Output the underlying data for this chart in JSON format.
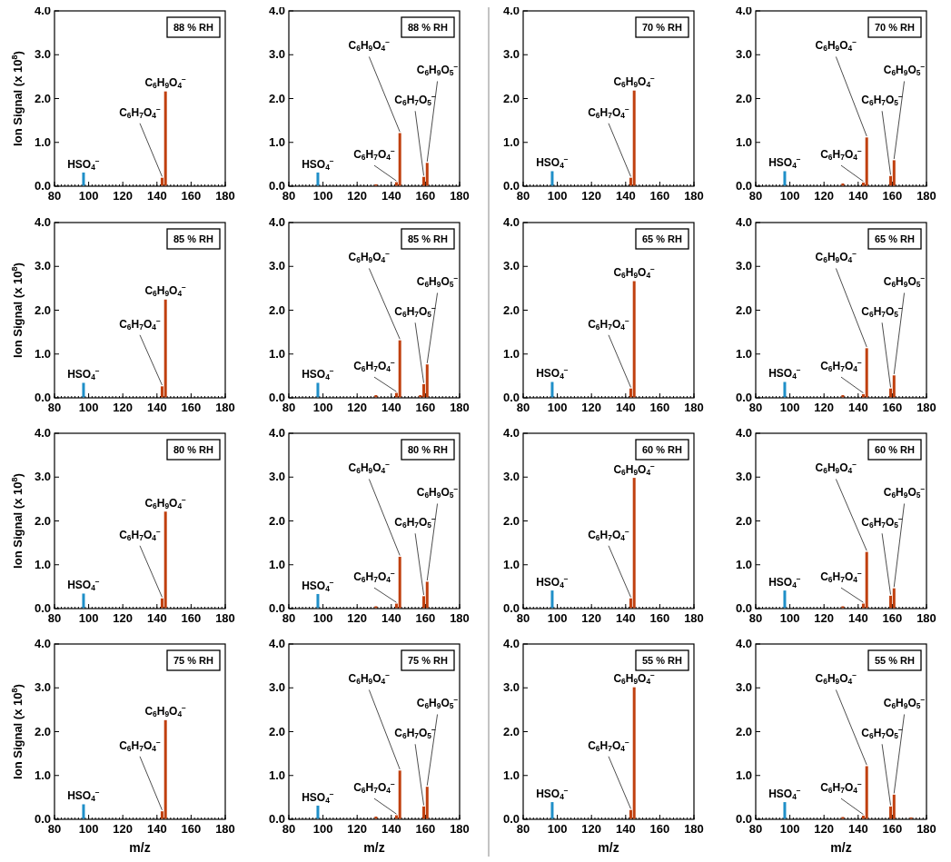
{
  "chart_data": [
    {
      "type": "bar",
      "title": "88 % RH",
      "ylabel": "Ion Signal (x 10$^{8}$)",
      "xlim": [
        80,
        180
      ],
      "xticks": [
        80,
        100,
        120,
        140,
        160,
        180
      ],
      "ylim": [
        0,
        4
      ],
      "yticks": [
        {
          "value": 0,
          "label": "0.0"
        },
        {
          "value": 1,
          "label": "1.0"
        },
        {
          "value": 2,
          "label": "2.0"
        },
        {
          "value": 3,
          "label": "3.0"
        },
        {
          "value": 4,
          "label": "4.0"
        }
      ],
      "series": [
        {
          "color": "#1f8fc8",
          "x": [
            97
          ],
          "values": [
            0.3
          ]
        },
        {
          "color": "#c0400f",
          "x": [
            143,
            145
          ],
          "values": [
            0.18,
            2.15
          ]
        }
      ],
      "annotations": [
        {
          "text": "HSO$_{4}$$^{−}$",
          "x": 97,
          "y": 0.3
        },
        {
          "text": "C$_{6}$H$_{7}$O$_{4}$$^{−}$",
          "x": 143,
          "y": 0.18
        },
        {
          "text": "C$_{6}$H$_{9}$O$_{4}$$^{−}$",
          "x": 145,
          "y": 2.15
        }
      ]
    },
    {
      "type": "bar",
      "title": "88 % RH",
      "xlim": [
        80,
        180
      ],
      "xticks": [
        80,
        100,
        120,
        140,
        160,
        180
      ],
      "ylim": [
        0,
        4
      ],
      "yticks": [
        {
          "value": 0,
          "label": "0.0"
        },
        {
          "value": 1,
          "label": "1.0"
        },
        {
          "value": 2,
          "label": "2.0"
        },
        {
          "value": 3,
          "label": "3.0"
        },
        {
          "value": 4,
          "label": "4.0"
        }
      ],
      "series": [
        {
          "color": "#1f8fc8",
          "x": [
            97
          ],
          "values": [
            0.3
          ]
        },
        {
          "color": "#c0400f",
          "x": [
            131,
            143,
            145,
            159,
            161
          ],
          "values": [
            0.03,
            0.08,
            1.2,
            0.2,
            0.52
          ]
        }
      ],
      "annotations": [
        {
          "text": "HSO$_{4}$$^{−}$",
          "x": 97,
          "y": 0.3
        },
        {
          "text": "C$_{6}$H$_{7}$O$_{4}$$^{−}$",
          "x": 143,
          "y": 0.08
        },
        {
          "text": "C$_{6}$H$_{9}$O$_{4}$$^{−}$",
          "x": 145,
          "y": 1.2
        },
        {
          "text": "C$_{6}$H$_{7}$O$_{5}$$^{−}$",
          "x": 159,
          "y": 0.2
        },
        {
          "text": "C$_{6}$H$_{9}$O$_{5}$$^{−}$",
          "x": 161,
          "y": 0.52
        }
      ]
    },
    {
      "type": "bar",
      "title": "70 % RH",
      "xlim": [
        80,
        180
      ],
      "xticks": [
        80,
        100,
        120,
        140,
        160,
        180
      ],
      "ylim": [
        0,
        4
      ],
      "yticks": [
        {
          "value": 0,
          "label": "0.0"
        },
        {
          "value": 1,
          "label": "1.0"
        },
        {
          "value": 2,
          "label": "2.0"
        },
        {
          "value": 3,
          "label": "3.0"
        },
        {
          "value": 4,
          "label": "4.0"
        }
      ],
      "series": [
        {
          "color": "#1f8fc8",
          "x": [
            97
          ],
          "values": [
            0.33
          ]
        },
        {
          "color": "#c0400f",
          "x": [
            143,
            145
          ],
          "values": [
            0.18,
            2.17
          ]
        }
      ],
      "annotations": [
        {
          "text": "HSO$_{4}$$^{−}$",
          "x": 97,
          "y": 0.33
        },
        {
          "text": "C$_{6}$H$_{7}$O$_{4}$$^{−}$",
          "x": 143,
          "y": 0.18
        },
        {
          "text": "C$_{6}$H$_{9}$O$_{4}$$^{−}$",
          "x": 145,
          "y": 2.17
        }
      ]
    },
    {
      "type": "bar",
      "title": "70 % RH",
      "xlim": [
        80,
        180
      ],
      "xticks": [
        80,
        100,
        120,
        140,
        160,
        180
      ],
      "ylim": [
        0,
        4
      ],
      "yticks": [
        {
          "value": 0,
          "label": "0.0"
        },
        {
          "value": 1,
          "label": "1.0"
        },
        {
          "value": 2,
          "label": "2.0"
        },
        {
          "value": 3,
          "label": "3.0"
        },
        {
          "value": 4,
          "label": "4.0"
        }
      ],
      "series": [
        {
          "color": "#1f8fc8",
          "x": [
            97
          ],
          "values": [
            0.33
          ]
        },
        {
          "color": "#c0400f",
          "x": [
            131,
            143,
            145,
            159,
            161
          ],
          "values": [
            0.05,
            0.07,
            1.1,
            0.22,
            0.58
          ]
        }
      ],
      "annotations": [
        {
          "text": "HSO$_{4}$$^{−}$",
          "x": 97,
          "y": 0.33
        },
        {
          "text": "C$_{6}$H$_{7}$O$_{4}$$^{−}$",
          "x": 143,
          "y": 0.07
        },
        {
          "text": "C$_{6}$H$_{9}$O$_{4}$$^{−}$",
          "x": 145,
          "y": 1.1
        },
        {
          "text": "C$_{6}$H$_{7}$O$_{5}$$^{−}$",
          "x": 159,
          "y": 0.22
        },
        {
          "text": "C$_{6}$H$_{9}$O$_{5}$$^{−}$",
          "x": 161,
          "y": 0.58
        }
      ]
    },
    {
      "type": "bar",
      "title": "85 % RH",
      "ylabel": "Ion Signal (x 10$^{8}$)",
      "xlim": [
        80,
        180
      ],
      "xticks": [
        80,
        100,
        120,
        140,
        160,
        180
      ],
      "ylim": [
        0,
        4
      ],
      "yticks": [
        {
          "value": 0,
          "label": "0.0"
        },
        {
          "value": 1,
          "label": "1.0"
        },
        {
          "value": 2,
          "label": "2.0"
        },
        {
          "value": 3,
          "label": "3.0"
        },
        {
          "value": 4,
          "label": "4.0"
        }
      ],
      "series": [
        {
          "color": "#1f8fc8",
          "x": [
            97
          ],
          "values": [
            0.33
          ]
        },
        {
          "color": "#c0400f",
          "x": [
            143,
            145
          ],
          "values": [
            0.25,
            2.23
          ]
        }
      ],
      "annotations": [
        {
          "text": "HSO$_{4}$$^{−}$",
          "x": 97,
          "y": 0.33
        },
        {
          "text": "C$_{6}$H$_{7}$O$_{4}$$^{−}$",
          "x": 143,
          "y": 0.25
        },
        {
          "text": "C$_{6}$H$_{9}$O$_{4}$$^{−}$",
          "x": 145,
          "y": 2.23
        }
      ]
    },
    {
      "type": "bar",
      "title": "85 % RH",
      "xlim": [
        80,
        180
      ],
      "xticks": [
        80,
        100,
        120,
        140,
        160,
        180
      ],
      "ylim": [
        0,
        4
      ],
      "yticks": [
        {
          "value": 0,
          "label": "0.0"
        },
        {
          "value": 1,
          "label": "1.0"
        },
        {
          "value": 2,
          "label": "2.0"
        },
        {
          "value": 3,
          "label": "3.0"
        },
        {
          "value": 4,
          "label": "4.0"
        }
      ],
      "series": [
        {
          "color": "#1f8fc8",
          "x": [
            97
          ],
          "values": [
            0.33
          ]
        },
        {
          "color": "#c0400f",
          "x": [
            131,
            143,
            145,
            157,
            159,
            161
          ],
          "values": [
            0.05,
            0.1,
            1.3,
            0.05,
            0.3,
            0.75
          ]
        }
      ],
      "annotations": [
        {
          "text": "HSO$_{4}$$^{−}$",
          "x": 97,
          "y": 0.33
        },
        {
          "text": "C$_{6}$H$_{7}$O$_{4}$$^{−}$",
          "x": 143,
          "y": 0.1
        },
        {
          "text": "C$_{6}$H$_{9}$O$_{4}$$^{−}$",
          "x": 145,
          "y": 1.3
        },
        {
          "text": "C$_{6}$H$_{7}$O$_{5}$$^{−}$",
          "x": 159,
          "y": 0.3
        },
        {
          "text": "C$_{6}$H$_{9}$O$_{5}$$^{−}$",
          "x": 161,
          "y": 0.75
        }
      ]
    },
    {
      "type": "bar",
      "title": "65 % RH",
      "xlim": [
        80,
        180
      ],
      "xticks": [
        80,
        100,
        120,
        140,
        160,
        180
      ],
      "ylim": [
        0,
        4
      ],
      "yticks": [
        {
          "value": 0,
          "label": "0.0"
        },
        {
          "value": 1,
          "label": "1.0"
        },
        {
          "value": 2,
          "label": "2.0"
        },
        {
          "value": 3,
          "label": "3.0"
        },
        {
          "value": 4,
          "label": "4.0"
        }
      ],
      "series": [
        {
          "color": "#1f8fc8",
          "x": [
            97
          ],
          "values": [
            0.35
          ]
        },
        {
          "color": "#c0400f",
          "x": [
            143,
            145
          ],
          "values": [
            0.2,
            2.65
          ]
        }
      ],
      "annotations": [
        {
          "text": "HSO$_{4}$$^{−}$",
          "x": 97,
          "y": 0.35
        },
        {
          "text": "C$_{6}$H$_{7}$O$_{4}$$^{−}$",
          "x": 143,
          "y": 0.2
        },
        {
          "text": "C$_{6}$H$_{9}$O$_{4}$$^{−}$",
          "x": 145,
          "y": 2.65
        }
      ]
    },
    {
      "type": "bar",
      "title": "65 % RH",
      "xlim": [
        80,
        180
      ],
      "xticks": [
        80,
        100,
        120,
        140,
        160,
        180
      ],
      "ylim": [
        0,
        4
      ],
      "yticks": [
        {
          "value": 0,
          "label": "0.0"
        },
        {
          "value": 1,
          "label": "1.0"
        },
        {
          "value": 2,
          "label": "2.0"
        },
        {
          "value": 3,
          "label": "3.0"
        },
        {
          "value": 4,
          "label": "4.0"
        }
      ],
      "series": [
        {
          "color": "#1f8fc8",
          "x": [
            97
          ],
          "values": [
            0.35
          ]
        },
        {
          "color": "#c0400f",
          "x": [
            131,
            143,
            145,
            159,
            161
          ],
          "values": [
            0.05,
            0.07,
            1.12,
            0.2,
            0.5
          ]
        }
      ],
      "annotations": [
        {
          "text": "HSO$_{4}$$^{−}$",
          "x": 97,
          "y": 0.35
        },
        {
          "text": "C$_{6}$H$_{7}$O$_{4}$$^{−}$",
          "x": 143,
          "y": 0.07
        },
        {
          "text": "C$_{6}$H$_{9}$O$_{4}$$^{−}$",
          "x": 145,
          "y": 1.12
        },
        {
          "text": "C$_{6}$H$_{7}$O$_{5}$$^{−}$",
          "x": 159,
          "y": 0.2
        },
        {
          "text": "C$_{6}$H$_{9}$O$_{5}$$^{−}$",
          "x": 161,
          "y": 0.5
        }
      ]
    },
    {
      "type": "bar",
      "title": "80 % RH",
      "ylabel": "Ion Signal (x 10$^{8}$)",
      "xlim": [
        80,
        180
      ],
      "xticks": [
        80,
        100,
        120,
        140,
        160,
        180
      ],
      "ylim": [
        0,
        4
      ],
      "yticks": [
        {
          "value": 0,
          "label": "0.0"
        },
        {
          "value": 1,
          "label": "1.0"
        },
        {
          "value": 2,
          "label": "2.0"
        },
        {
          "value": 3,
          "label": "3.0"
        },
        {
          "value": 4,
          "label": "4.0"
        }
      ],
      "series": [
        {
          "color": "#1f8fc8",
          "x": [
            97
          ],
          "values": [
            0.33
          ]
        },
        {
          "color": "#c0400f",
          "x": [
            143,
            145
          ],
          "values": [
            0.22,
            2.2
          ]
        }
      ],
      "annotations": [
        {
          "text": "HSO$_{4}$$^{−}$",
          "x": 97,
          "y": 0.33
        },
        {
          "text": "C$_{6}$H$_{7}$O$_{4}$$^{−}$",
          "x": 143,
          "y": 0.22
        },
        {
          "text": "C$_{6}$H$_{9}$O$_{4}$$^{−}$",
          "x": 145,
          "y": 2.2
        }
      ]
    },
    {
      "type": "bar",
      "title": "80 % RH",
      "xlim": [
        80,
        180
      ],
      "xticks": [
        80,
        100,
        120,
        140,
        160,
        180
      ],
      "ylim": [
        0,
        4
      ],
      "yticks": [
        {
          "value": 0,
          "label": "0.0"
        },
        {
          "value": 1,
          "label": "1.0"
        },
        {
          "value": 2,
          "label": "2.0"
        },
        {
          "value": 3,
          "label": "3.0"
        },
        {
          "value": 4,
          "label": "4.0"
        }
      ],
      "series": [
        {
          "color": "#1f8fc8",
          "x": [
            97
          ],
          "values": [
            0.32
          ]
        },
        {
          "color": "#c0400f",
          "x": [
            131,
            143,
            145,
            159,
            161
          ],
          "values": [
            0.04,
            0.1,
            1.17,
            0.27,
            0.6
          ]
        }
      ],
      "annotations": [
        {
          "text": "HSO$_{4}$$^{−}$",
          "x": 97,
          "y": 0.32
        },
        {
          "text": "C$_{6}$H$_{7}$O$_{4}$$^{−}$",
          "x": 143,
          "y": 0.1
        },
        {
          "text": "C$_{6}$H$_{9}$O$_{4}$$^{−}$",
          "x": 145,
          "y": 1.17
        },
        {
          "text": "C$_{6}$H$_{7}$O$_{5}$$^{−}$",
          "x": 159,
          "y": 0.27
        },
        {
          "text": "C$_{6}$H$_{9}$O$_{5}$$^{−}$",
          "x": 161,
          "y": 0.6
        }
      ]
    },
    {
      "type": "bar",
      "title": "60 % RH",
      "xlim": [
        80,
        180
      ],
      "xticks": [
        80,
        100,
        120,
        140,
        160,
        180
      ],
      "ylim": [
        0,
        4
      ],
      "yticks": [
        {
          "value": 0,
          "label": "0.0"
        },
        {
          "value": 1,
          "label": "1.0"
        },
        {
          "value": 2,
          "label": "2.0"
        },
        {
          "value": 3,
          "label": "3.0"
        },
        {
          "value": 4,
          "label": "4.0"
        }
      ],
      "series": [
        {
          "color": "#1f8fc8",
          "x": [
            97
          ],
          "values": [
            0.4
          ]
        },
        {
          "color": "#c0400f",
          "x": [
            143,
            145
          ],
          "values": [
            0.22,
            2.97
          ]
        }
      ],
      "annotations": [
        {
          "text": "HSO$_{4}$$^{−}$",
          "x": 97,
          "y": 0.4
        },
        {
          "text": "C$_{6}$H$_{7}$O$_{4}$$^{−}$",
          "x": 143,
          "y": 0.22
        },
        {
          "text": "C$_{6}$H$_{9}$O$_{4}$$^{−}$",
          "x": 145,
          "y": 2.97
        }
      ]
    },
    {
      "type": "bar",
      "title": "60 % RH",
      "xlim": [
        80,
        180
      ],
      "xticks": [
        80,
        100,
        120,
        140,
        160,
        180
      ],
      "ylim": [
        0,
        4
      ],
      "yticks": [
        {
          "value": 0,
          "label": "0.0"
        },
        {
          "value": 1,
          "label": "1.0"
        },
        {
          "value": 2,
          "label": "2.0"
        },
        {
          "value": 3,
          "label": "3.0"
        },
        {
          "value": 4,
          "label": "4.0"
        }
      ],
      "series": [
        {
          "color": "#1f8fc8",
          "x": [
            97
          ],
          "values": [
            0.4
          ]
        },
        {
          "color": "#c0400f",
          "x": [
            131,
            143,
            145,
            159,
            161
          ],
          "values": [
            0.04,
            0.1,
            1.28,
            0.28,
            0.45
          ]
        }
      ],
      "annotations": [
        {
          "text": "HSO$_{4}$$^{−}$",
          "x": 97,
          "y": 0.4
        },
        {
          "text": "C$_{6}$H$_{7}$O$_{4}$$^{−}$",
          "x": 143,
          "y": 0.1
        },
        {
          "text": "C$_{6}$H$_{9}$O$_{4}$$^{−}$",
          "x": 145,
          "y": 1.28
        },
        {
          "text": "C$_{6}$H$_{7}$O$_{5}$$^{−}$",
          "x": 159,
          "y": 0.28
        },
        {
          "text": "C$_{6}$H$_{9}$O$_{5}$$^{−}$",
          "x": 161,
          "y": 0.45
        }
      ]
    },
    {
      "type": "bar",
      "title": "75 % RH",
      "ylabel": "Ion Signal (x 10$^{8}$)",
      "xlabel": "m/z",
      "xlim": [
        80,
        180
      ],
      "xticks": [
        80,
        100,
        120,
        140,
        160,
        180
      ],
      "ylim": [
        0,
        4
      ],
      "yticks": [
        {
          "value": 0,
          "label": "0.0"
        },
        {
          "value": 1,
          "label": "1.0"
        },
        {
          "value": 2,
          "label": "2.0"
        },
        {
          "value": 3,
          "label": "3.0"
        },
        {
          "value": 4,
          "label": "4.0"
        }
      ],
      "series": [
        {
          "color": "#1f8fc8",
          "x": [
            97
          ],
          "values": [
            0.33
          ]
        },
        {
          "color": "#c0400f",
          "x": [
            143,
            145
          ],
          "values": [
            0.17,
            2.25
          ]
        }
      ],
      "annotations": [
        {
          "text": "HSO$_{4}$$^{−}$",
          "x": 97,
          "y": 0.33
        },
        {
          "text": "C$_{6}$H$_{7}$O$_{4}$$^{−}$",
          "x": 143,
          "y": 0.17
        },
        {
          "text": "C$_{6}$H$_{9}$O$_{4}$$^{−}$",
          "x": 145,
          "y": 2.25
        }
      ]
    },
    {
      "type": "bar",
      "title": "75 % RH",
      "xlabel": "m/z",
      "xlim": [
        80,
        180
      ],
      "xticks": [
        80,
        100,
        120,
        140,
        160,
        180
      ],
      "ylim": [
        0,
        4
      ],
      "yticks": [
        {
          "value": 0,
          "label": "0.0"
        },
        {
          "value": 1,
          "label": "1.0"
        },
        {
          "value": 2,
          "label": "2.0"
        },
        {
          "value": 3,
          "label": "3.0"
        },
        {
          "value": 4,
          "label": "4.0"
        }
      ],
      "series": [
        {
          "color": "#1f8fc8",
          "x": [
            97
          ],
          "values": [
            0.3
          ]
        },
        {
          "color": "#c0400f",
          "x": [
            131,
            143,
            145,
            159,
            161
          ],
          "values": [
            0.05,
            0.08,
            1.1,
            0.28,
            0.73
          ]
        }
      ],
      "annotations": [
        {
          "text": "HSO$_{4}$$^{−}$",
          "x": 97,
          "y": 0.3
        },
        {
          "text": "C$_{6}$H$_{7}$O$_{4}$$^{−}$",
          "x": 143,
          "y": 0.08
        },
        {
          "text": "C$_{6}$H$_{9}$O$_{4}$$^{−}$",
          "x": 145,
          "y": 1.1
        },
        {
          "text": "C$_{6}$H$_{7}$O$_{5}$$^{−}$",
          "x": 159,
          "y": 0.28
        },
        {
          "text": "C$_{6}$H$_{9}$O$_{5}$$^{−}$",
          "x": 161,
          "y": 0.73
        }
      ]
    },
    {
      "type": "bar",
      "title": "55 % RH",
      "xlabel": "m/z",
      "xlim": [
        80,
        180
      ],
      "xticks": [
        80,
        100,
        120,
        140,
        160,
        180
      ],
      "ylim": [
        0,
        4
      ],
      "yticks": [
        {
          "value": 0,
          "label": "0.0"
        },
        {
          "value": 1,
          "label": "1.0"
        },
        {
          "value": 2,
          "label": "2.0"
        },
        {
          "value": 3,
          "label": "3.0"
        },
        {
          "value": 4,
          "label": "4.0"
        }
      ],
      "series": [
        {
          "color": "#1f8fc8",
          "x": [
            97
          ],
          "values": [
            0.38
          ]
        },
        {
          "color": "#c0400f",
          "x": [
            143,
            145
          ],
          "values": [
            0.2,
            3.0
          ]
        }
      ],
      "annotations": [
        {
          "text": "HSO$_{4}$$^{−}$",
          "x": 97,
          "y": 0.38
        },
        {
          "text": "C$_{6}$H$_{7}$O$_{4}$$^{−}$",
          "x": 143,
          "y": 0.2
        },
        {
          "text": "C$_{6}$H$_{9}$O$_{4}$$^{−}$",
          "x": 145,
          "y": 3.0
        }
      ]
    },
    {
      "type": "bar",
      "title": "55 % RH",
      "xlabel": "m/z",
      "xlim": [
        80,
        180
      ],
      "xticks": [
        80,
        100,
        120,
        140,
        160,
        180
      ],
      "ylim": [
        0,
        4
      ],
      "yticks": [
        {
          "value": 0,
          "label": "0.0"
        },
        {
          "value": 1,
          "label": "1.0"
        },
        {
          "value": 2,
          "label": "2.0"
        },
        {
          "value": 3,
          "label": "3.0"
        },
        {
          "value": 4,
          "label": "4.0"
        }
      ],
      "series": [
        {
          "color": "#1f8fc8",
          "x": [
            97
          ],
          "values": [
            0.38
          ]
        },
        {
          "color": "#c0400f",
          "x": [
            131,
            143,
            145,
            159,
            161,
            171
          ],
          "values": [
            0.04,
            0.07,
            1.2,
            0.28,
            0.55,
            0.03
          ]
        }
      ],
      "annotations": [
        {
          "text": "HSO$_{4}$$^{−}$",
          "x": 97,
          "y": 0.38
        },
        {
          "text": "C$_{6}$H$_{7}$O$_{4}$$^{−}$",
          "x": 143,
          "y": 0.07
        },
        {
          "text": "C$_{6}$H$_{9}$O$_{4}$$^{−}$",
          "x": 145,
          "y": 1.2
        },
        {
          "text": "C$_{6}$H$_{7}$O$_{5}$$^{−}$",
          "x": 159,
          "y": 0.28
        },
        {
          "text": "C$_{6}$H$_{9}$O$_{5}$$^{−}$",
          "x": 161,
          "y": 0.55
        }
      ]
    }
  ]
}
